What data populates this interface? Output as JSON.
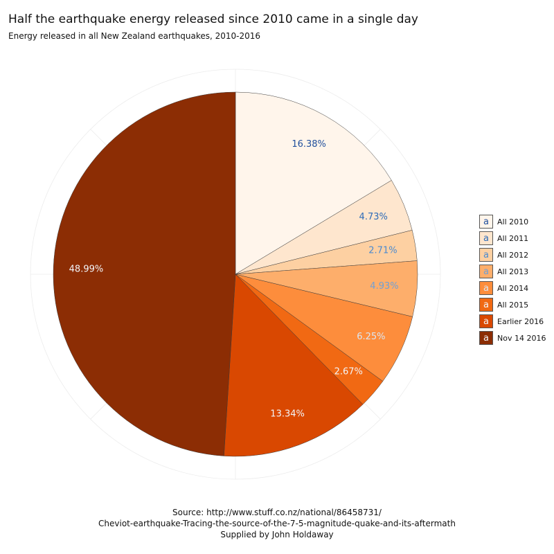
{
  "chart_data": {
    "type": "pie",
    "title": "Half the earthquake energy released since 2010 came in a single day",
    "subtitle": "Energy released in all New Zealand earthquakes, 2010-2016",
    "categories": [
      "All 2010",
      "All 2011",
      "All 2012",
      "All 2013",
      "All 2014",
      "All 2015",
      "Earlier 2016",
      "Nov 14 2016"
    ],
    "values": [
      16.38,
      4.73,
      2.71,
      4.93,
      6.25,
      2.67,
      13.34,
      48.99
    ],
    "labels": [
      "16.38%",
      "4.73%",
      "2.71%",
      "4.93%",
      "6.25%",
      "2.67%",
      "13.34%",
      "48.99%"
    ],
    "colors": [
      "#fff5eb",
      "#fee6ce",
      "#fdd0a2",
      "#fdae6b",
      "#fd8d3c",
      "#f16913",
      "#d94801",
      "#8c2d04"
    ],
    "label_colors": [
      "#1f4e9c",
      "#2d6bb8",
      "#4a8ad0",
      "#6fa0d6",
      "#dce6f2",
      "#f3f6fa",
      "#f3f6fa",
      "#f3f6fa"
    ],
    "legend_glyph": "a",
    "legend_placement": "right",
    "grid": true
  },
  "caption": {
    "line1": "Source: http://www.stuff.co.nz/national/86458731/",
    "line2": "Cheviot-earthquake-Tracing-the-source-of-the-7-5-magnitude-quake-and-its-aftermath",
    "line3": "Supplied by John Holdaway"
  }
}
